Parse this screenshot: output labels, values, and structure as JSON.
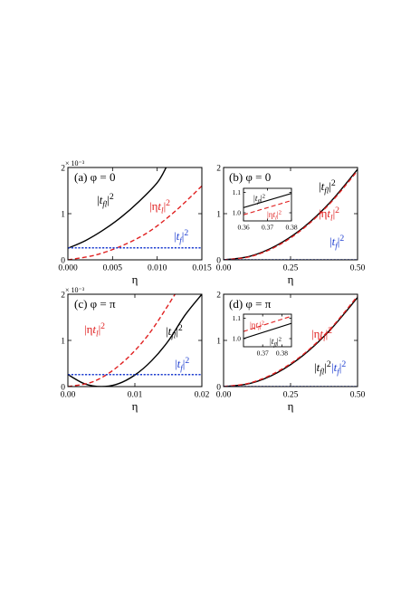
{
  "figure": {
    "x_axis_label": "η"
  },
  "colors": {
    "t_fl": "#000000",
    "eta_t_l": "#e02020",
    "t_f": "#2040d0",
    "axis": "#000000"
  },
  "chart_data": [
    {
      "id": "a",
      "type": "line",
      "panel_label": "(a) φ = 0",
      "scale_label": "× 10⁻³",
      "xlabel": "η",
      "xlim": [
        0,
        0.015
      ],
      "ylim": [
        0,
        2
      ],
      "xticks": [
        "0.000",
        "0.005",
        "0.010",
        "0.015"
      ],
      "xtick_values": [
        0,
        0.005,
        0.01,
        0.015
      ],
      "yticks": [
        "0",
        "1",
        "2"
      ],
      "ytick_values": [
        0,
        1,
        2
      ],
      "series": [
        {
          "name": "|t_fl|²",
          "style": "solid",
          "color": "#000000",
          "x": [
            0,
            0.002,
            0.004,
            0.006,
            0.008,
            0.01,
            0.011
          ],
          "y": [
            0.25,
            0.42,
            0.65,
            0.93,
            1.27,
            1.67,
            2.0
          ]
        },
        {
          "name": "|ηt_l|²",
          "style": "dashed",
          "color": "#e02020",
          "x": [
            0,
            0.003,
            0.006,
            0.009,
            0.012,
            0.015
          ],
          "y": [
            0,
            0.1,
            0.3,
            0.6,
            1.05,
            1.6
          ]
        },
        {
          "name": "|t_f|²",
          "style": "dotted",
          "color": "#2040d0",
          "x": [
            0,
            0.015
          ],
          "y": [
            0.26,
            0.26
          ]
        }
      ]
    },
    {
      "id": "b",
      "type": "line",
      "panel_label": "(b) φ = 0",
      "xlabel": "η",
      "xlim": [
        0,
        0.5
      ],
      "ylim": [
        0,
        2
      ],
      "xticks": [
        "0.00",
        "0.25",
        "0.50"
      ],
      "xtick_values": [
        0,
        0.25,
        0.5
      ],
      "yticks": [
        "0",
        "1",
        "2"
      ],
      "ytick_values": [
        0,
        1,
        2
      ],
      "series": [
        {
          "name": "|t_fl|²",
          "style": "solid",
          "color": "#000000",
          "x": [
            0,
            0.1,
            0.2,
            0.3,
            0.4,
            0.5
          ],
          "y": [
            0.0,
            0.08,
            0.32,
            0.71,
            1.26,
            1.96
          ]
        },
        {
          "name": "|ηt_l|²",
          "style": "dashed",
          "color": "#e02020",
          "x": [
            0,
            0.1,
            0.2,
            0.3,
            0.4,
            0.5
          ],
          "y": [
            0.0,
            0.07,
            0.3,
            0.69,
            1.24,
            1.93
          ]
        },
        {
          "name": "|t_f|²",
          "style": "dotted",
          "color": "#2040d0",
          "x": [
            0,
            0.5
          ],
          "y": [
            0.0,
            0.0
          ]
        }
      ],
      "inset": {
        "xlim": [
          0.36,
          0.38
        ],
        "ylim": [
          0.96,
          1.12
        ],
        "xticks": [
          "0.36",
          "0.37",
          "0.38"
        ],
        "xtick_values": [
          0.36,
          0.37,
          0.38
        ],
        "yticks": [
          "1.0",
          "1.1"
        ],
        "ytick_values": [
          1.0,
          1.1
        ],
        "series": [
          {
            "name": "|t_fl|²",
            "style": "solid",
            "color": "#000000",
            "x": [
              0.36,
              0.38
            ],
            "y": [
              1.025,
              1.095
            ]
          },
          {
            "name": "|ηt_l|²",
            "style": "dashed",
            "color": "#e02020",
            "x": [
              0.36,
              0.38
            ],
            "y": [
              0.99,
              1.06
            ]
          }
        ]
      }
    },
    {
      "id": "c",
      "type": "line",
      "panel_label": "(c) φ = π",
      "scale_label": "× 10⁻³",
      "xlabel": "η",
      "xlim": [
        0,
        0.02
      ],
      "ylim": [
        0,
        2
      ],
      "xticks": [
        "0.00",
        "0.01",
        "0.02"
      ],
      "xtick_values": [
        0,
        0.01,
        0.02
      ],
      "yticks": [
        "0",
        "1",
        "2"
      ],
      "ytick_values": [
        0,
        1,
        2
      ],
      "series": [
        {
          "name": "|t_fl|²",
          "style": "solid",
          "color": "#000000",
          "x": [
            0,
            0.0025,
            0.005,
            0.0075,
            0.01,
            0.0125,
            0.015,
            0.0175,
            0.02
          ],
          "y": [
            0.26,
            0.06,
            0.0,
            0.06,
            0.25,
            0.56,
            0.99,
            1.55,
            2.0
          ]
        },
        {
          "name": "|ηt_l|²",
          "style": "dashed",
          "color": "#e02020",
          "x": [
            0,
            0.004,
            0.008,
            0.012,
            0.016
          ],
          "y": [
            0,
            0.12,
            0.5,
            1.12,
            2.0
          ]
        },
        {
          "name": "|t_f|²",
          "style": "dotted",
          "color": "#2040d0",
          "x": [
            0,
            0.02
          ],
          "y": [
            0.26,
            0.26
          ]
        }
      ]
    },
    {
      "id": "d",
      "type": "line",
      "panel_label": "(d) φ = π",
      "xlabel": "η",
      "xlim": [
        0,
        0.5
      ],
      "ylim": [
        0,
        2
      ],
      "xticks": [
        "0.00",
        "0.25",
        "0.50"
      ],
      "xtick_values": [
        0,
        0.25,
        0.5
      ],
      "yticks": [
        "0",
        "1",
        "2"
      ],
      "ytick_values": [
        0,
        1,
        2
      ],
      "series": [
        {
          "name": "|t_fl|²",
          "style": "solid",
          "color": "#000000",
          "x": [
            0,
            0.1,
            0.2,
            0.3,
            0.4,
            0.5
          ],
          "y": [
            0.0,
            0.07,
            0.3,
            0.69,
            1.24,
            1.93
          ]
        },
        {
          "name": "|ηt_l|²",
          "style": "dashed",
          "color": "#e02020",
          "x": [
            0,
            0.1,
            0.2,
            0.3,
            0.4,
            0.5
          ],
          "y": [
            0.0,
            0.08,
            0.32,
            0.71,
            1.26,
            1.96
          ]
        },
        {
          "name": "|t_f|²",
          "style": "dotted",
          "color": "#2040d0",
          "x": [
            0,
            0.5
          ],
          "y": [
            0.0,
            0.0
          ]
        }
      ],
      "inset": {
        "xlim": [
          0.36,
          0.385
        ],
        "ylim": [
          0.96,
          1.12
        ],
        "xticks": [
          "0.37",
          "0.38"
        ],
        "xtick_values": [
          0.37,
          0.38
        ],
        "yticks": [
          "1.0",
          "1.1"
        ],
        "ytick_values": [
          1.0,
          1.1
        ],
        "series": [
          {
            "name": "|ηt_l|²",
            "style": "dashed",
            "color": "#e02020",
            "x": [
              0.36,
              0.385
            ],
            "y": [
              1.035,
              1.11
            ]
          },
          {
            "name": "|t_fl|²",
            "style": "solid",
            "color": "#000000",
            "x": [
              0.36,
              0.385
            ],
            "y": [
              1.0,
              1.075
            ]
          }
        ]
      }
    }
  ]
}
